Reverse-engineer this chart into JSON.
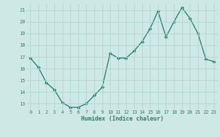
{
  "xlabel": "Humidex (Indice chaleur)",
  "x": [
    0,
    1,
    2,
    3,
    4,
    5,
    6,
    7,
    8,
    9,
    10,
    11,
    12,
    13,
    14,
    15,
    16,
    17,
    18,
    19,
    20,
    21,
    22,
    23
  ],
  "y": [
    16.9,
    16.1,
    14.8,
    14.2,
    13.1,
    12.7,
    12.7,
    13.0,
    13.7,
    14.4,
    17.3,
    16.9,
    16.9,
    17.5,
    18.3,
    19.4,
    20.9,
    18.7,
    20.0,
    21.2,
    20.3,
    19.0,
    16.8,
    16.6
  ],
  "line_color": "#2d7d6e",
  "marker": "D",
  "marker_size": 2.2,
  "line_width": 1.0,
  "bg_color": "#cde8e5",
  "grid_color": "#b0d4d0",
  "tick_color": "#2d7d6e",
  "label_color": "#2d7d6e",
  "ylim": [
    12.5,
    21.5
  ],
  "yticks": [
    13,
    14,
    15,
    16,
    17,
    18,
    19,
    20,
    21
  ],
  "xlim": [
    -0.5,
    23.5
  ],
  "xticks": [
    0,
    1,
    2,
    3,
    4,
    5,
    6,
    7,
    8,
    9,
    10,
    11,
    12,
    13,
    14,
    15,
    16,
    17,
    18,
    19,
    20,
    21,
    22,
    23
  ],
  "tick_fontsize": 5.0,
  "xlabel_fontsize": 6.0
}
